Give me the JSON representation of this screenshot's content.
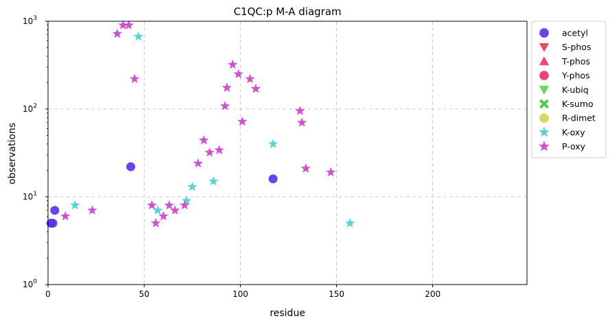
{
  "chart_data": {
    "type": "scatter",
    "title": "C1QC:p M-A diagram",
    "xlabel": "residue",
    "ylabel": "observations",
    "xlim": [
      0,
      249
    ],
    "ylim": [
      1,
      1000
    ],
    "yscale": "log",
    "grid": true,
    "legend_position": "outside-right",
    "x_ticks": [
      0,
      50,
      100,
      150,
      200
    ],
    "y_ticks": [
      {
        "value": 1,
        "base": "10",
        "exp": "0"
      },
      {
        "value": 10,
        "base": "10",
        "exp": "1"
      },
      {
        "value": 100,
        "base": "10",
        "exp": "2"
      },
      {
        "value": 1000,
        "base": "10",
        "exp": "3"
      }
    ],
    "series": [
      {
        "name": "acetyl",
        "marker": "circle",
        "color": "#5a2ff0",
        "points": [
          [
            1.5,
            5
          ],
          [
            2.5,
            5
          ],
          [
            3.5,
            7
          ],
          [
            43,
            22
          ],
          [
            117,
            16
          ]
        ]
      },
      {
        "name": "S-phos",
        "marker": "triangle-down",
        "color": "#f3334e",
        "points": []
      },
      {
        "name": "T-phos",
        "marker": "triangle-up",
        "color": "#f2316a",
        "points": []
      },
      {
        "name": "Y-phos",
        "marker": "circle",
        "color": "#f03066",
        "points": []
      },
      {
        "name": "K-ubiq",
        "marker": "triangle-down",
        "color": "#4ed846",
        "points": []
      },
      {
        "name": "K-sumo",
        "marker": "x",
        "color": "#43d13c",
        "points": []
      },
      {
        "name": "R-dimet",
        "marker": "circle",
        "color": "#d4d44a",
        "points": []
      },
      {
        "name": "K-oxy",
        "marker": "star",
        "color": "#45cfd4",
        "points": [
          [
            14,
            8
          ],
          [
            47,
            670
          ],
          [
            57,
            7
          ],
          [
            72,
            9
          ],
          [
            75,
            13
          ],
          [
            86,
            15
          ],
          [
            117,
            40
          ],
          [
            157,
            5
          ]
        ]
      },
      {
        "name": "P-oxy",
        "marker": "star",
        "color": "#cc3fcc",
        "points": [
          [
            9,
            6
          ],
          [
            23,
            7
          ],
          [
            36,
            720
          ],
          [
            39,
            900
          ],
          [
            42,
            900
          ],
          [
            45,
            220
          ],
          [
            54,
            8
          ],
          [
            56,
            5
          ],
          [
            60,
            6
          ],
          [
            63,
            8
          ],
          [
            66,
            7
          ],
          [
            71,
            8
          ],
          [
            78,
            24
          ],
          [
            81,
            44
          ],
          [
            84,
            32
          ],
          [
            89,
            34
          ],
          [
            92,
            108
          ],
          [
            93,
            175
          ],
          [
            96,
            320
          ],
          [
            99,
            250
          ],
          [
            101,
            72
          ],
          [
            105,
            220
          ],
          [
            108,
            170
          ],
          [
            131,
            95
          ],
          [
            132,
            70
          ],
          [
            134,
            21
          ],
          [
            147,
            19
          ]
        ]
      }
    ]
  }
}
